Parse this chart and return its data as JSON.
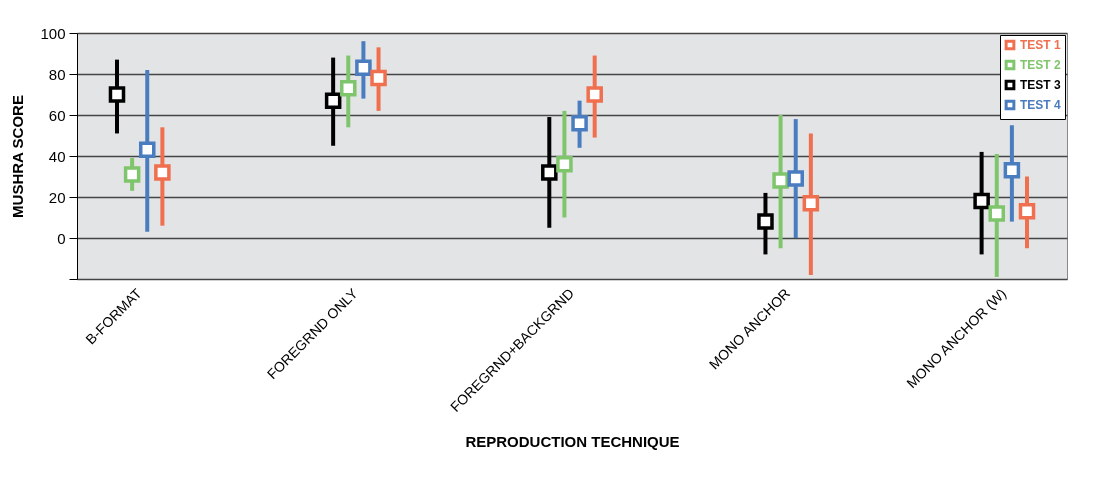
{
  "chart_data": {
    "type": "scatter",
    "xlabel": "REPRODUCTION TECHNIQUE",
    "ylabel": "MUSHRA SCORE",
    "categories": [
      "B-FORMAT",
      "FOREGRND ONLY",
      "FOREGRND+BACKGRND",
      "MONO ANCHOR",
      "MONO ANCHOR (W)"
    ],
    "series": [
      {
        "name": "TEST 3",
        "color": "#000000",
        "values": [
          70,
          67,
          32,
          8,
          18
        ],
        "errors": [
          [
            51,
            87
          ],
          [
            45,
            88
          ],
          [
            5,
            59
          ],
          [
            -8,
            22
          ],
          [
            -8,
            42
          ]
        ]
      },
      {
        "name": "TEST 2",
        "color": "#7fc56b",
        "values": [
          31,
          73,
          36,
          28,
          12
        ],
        "errors": [
          [
            23,
            39
          ],
          [
            54,
            89
          ],
          [
            10,
            62
          ],
          [
            -5,
            60
          ],
          [
            -19,
            41
          ]
        ]
      },
      {
        "name": "TEST 4",
        "color": "#4a7cc0",
        "values": [
          43,
          83,
          56,
          29,
          33
        ],
        "errors": [
          [
            3,
            82
          ],
          [
            68,
            96
          ],
          [
            44,
            67
          ],
          [
            0,
            58
          ],
          [
            8,
            55
          ]
        ]
      },
      {
        "name": "TEST 1",
        "color": "#ef6f4f",
        "values": [
          32,
          78,
          70,
          17,
          13
        ],
        "errors": [
          [
            6,
            54
          ],
          [
            62,
            93
          ],
          [
            49,
            89
          ],
          [
            -18,
            51
          ],
          [
            -5,
            30
          ]
        ]
      }
    ],
    "ylim": [
      -20,
      100
    ],
    "yticks": [
      {
        "value": -20,
        "label": null
      },
      0,
      20,
      40,
      60,
      80,
      100
    ],
    "grid": "y",
    "legend": "top right",
    "marker": "square"
  }
}
